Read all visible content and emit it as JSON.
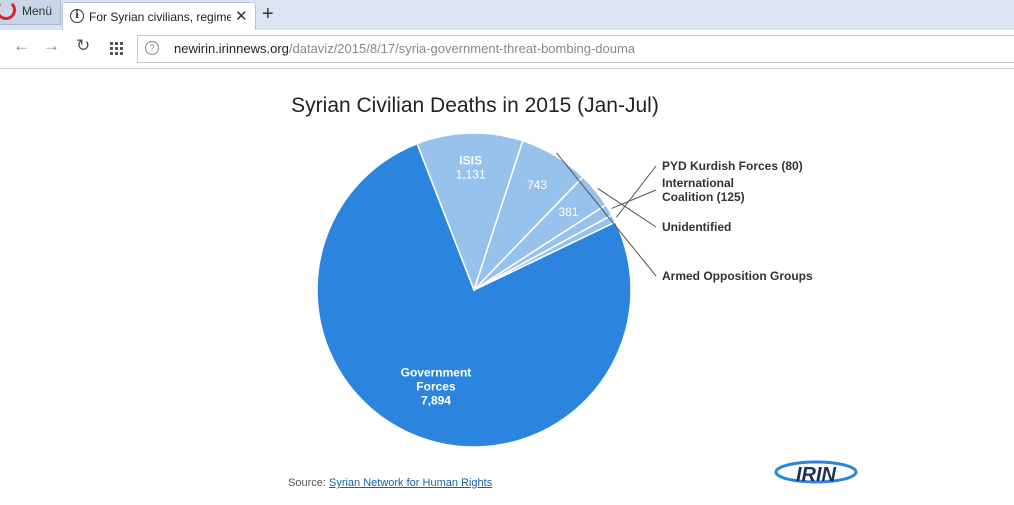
{
  "browser": {
    "menu_label": "Menü",
    "tab_title": "For Syrian civilians, regime",
    "tab_close": "✕",
    "new_tab": "+",
    "url_domain": "newirin.irinnews.org",
    "url_path": "/dataviz/2015/8/17/syria-government-threat-bombing-douma"
  },
  "chart_data": {
    "type": "pie",
    "title": "Syrian Civilian Deaths in 2015 (Jan-Jul)",
    "slices": [
      {
        "name": "Government Forces",
        "value": 7894,
        "label": "Government Forces",
        "value_label": "7,894",
        "color": "#2b84dd",
        "callout": ""
      },
      {
        "name": "ISIS",
        "value": 1131,
        "label": "ISIS",
        "value_label": "1,131",
        "color": "#96c2eb",
        "callout": ""
      },
      {
        "name": "Armed Opposition Groups",
        "value": 743,
        "label": "",
        "value_label": "743",
        "color": "#96c2eb",
        "callout": "Armed Opposition Groups"
      },
      {
        "name": "Unidentified",
        "value": 381,
        "label": "",
        "value_label": "381",
        "color": "#96c2eb",
        "callout": "Unidentified"
      },
      {
        "name": "International Coalition",
        "value": 125,
        "label": "",
        "value_label": "",
        "color": "#96c2eb",
        "callout": "International Coalition (125)"
      },
      {
        "name": "PYD Kurdish Forces",
        "value": 80,
        "label": "",
        "value_label": "",
        "color": "#96c2eb",
        "callout": "PYD Kurdish Forces (80)"
      }
    ],
    "start_angle_deg": -25.7,
    "direction": "clockwise"
  },
  "source": {
    "prefix": "Source:",
    "link_text": "Syrian Network for Human Rights"
  },
  "logo": {
    "text": "IRIN"
  }
}
